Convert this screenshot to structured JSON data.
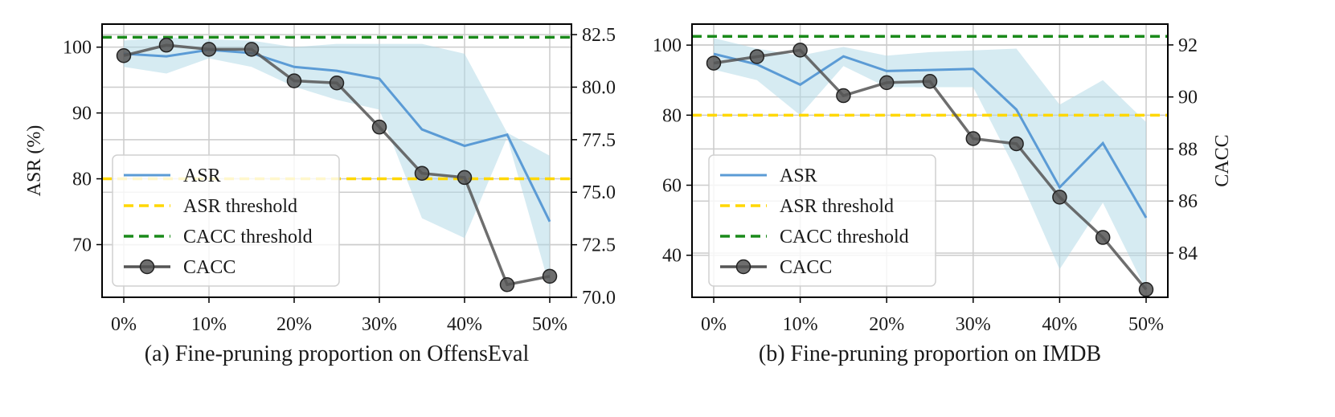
{
  "chart_data": [
    {
      "type": "line",
      "caption": "(a) Fine-pruning proportion on OffensEval",
      "x": [
        "0%",
        "5%",
        "10%",
        "15%",
        "20%",
        "25%",
        "30%",
        "35%",
        "40%",
        "45%",
        "50%"
      ],
      "xticks": [
        "0%",
        "10%",
        "20%",
        "30%",
        "40%",
        "50%"
      ],
      "ylabel": "ASR (%)",
      "y2label": "",
      "ylim": [
        62,
        103.5
      ],
      "yticks": [
        "70",
        "80",
        "90",
        "100"
      ],
      "y2lim": [
        70.0,
        83.0
      ],
      "y2ticks": [
        "70.0",
        "72.5",
        "75.0",
        "77.5",
        "80.0",
        "82.5"
      ],
      "series": [
        {
          "name": "ASR",
          "axis": "left",
          "color": "#5b9bd5",
          "values": [
            99.0,
            98.6,
            99.6,
            99.1,
            97.0,
            96.4,
            95.2,
            87.5,
            85.0,
            86.7,
            73.5
          ],
          "band_upper": [
            101.0,
            101.5,
            101.2,
            101.0,
            100.0,
            100.5,
            100.5,
            100.5,
            99.0,
            87.0,
            83.5
          ],
          "band_lower": [
            97.0,
            96.0,
            98.3,
            97.0,
            94.0,
            92.0,
            90.5,
            74.0,
            71.0,
            86.3,
            63.5
          ],
          "band_color": "#add8e6"
        },
        {
          "name": "CACC",
          "axis": "right",
          "color": "#555555",
          "marker": "circle",
          "values": [
            81.5,
            82.0,
            81.8,
            81.8,
            80.3,
            80.2,
            78.1,
            75.9,
            75.7,
            70.6,
            71.0
          ]
        }
      ],
      "thresholds": [
        {
          "name": "ASR threshold",
          "axis": "left",
          "value": 80,
          "color": "#ffd700"
        },
        {
          "name": "CACC threshold",
          "axis": "left",
          "value": 101.5,
          "color": "#1a8a1a"
        }
      ],
      "legend": [
        "ASR",
        "ASR threshold",
        "CACC threshold",
        "CACC"
      ],
      "legend_position": "lower-left",
      "grid": true
    },
    {
      "type": "line",
      "caption": "(b) Fine-pruning proportion on IMDB",
      "x": [
        "0%",
        "5%",
        "10%",
        "15%",
        "20%",
        "25%",
        "30%",
        "35%",
        "40%",
        "45%",
        "50%"
      ],
      "xticks": [
        "0%",
        "10%",
        "20%",
        "30%",
        "40%",
        "50%"
      ],
      "ylabel": "",
      "y2label": "CACC",
      "ylim": [
        28,
        106
      ],
      "yticks": [
        "40",
        "60",
        "80",
        "100"
      ],
      "y2lim": [
        82.3,
        92.8
      ],
      "y2ticks": [
        "84",
        "86",
        "88",
        "90",
        "92"
      ],
      "series": [
        {
          "name": "ASR",
          "axis": "left",
          "color": "#5b9bd5",
          "values": [
            97.5,
            94.5,
            88.7,
            96.8,
            92.6,
            92.9,
            93.2,
            81.6,
            59.4,
            72.0,
            50.7
          ],
          "band_upper": [
            102.0,
            99.0,
            97.0,
            99.5,
            97.0,
            98.0,
            98.5,
            99.0,
            83.0,
            90.0,
            78.0
          ],
          "band_lower": [
            93.0,
            90.0,
            80.0,
            94.0,
            88.0,
            88.0,
            88.0,
            64.0,
            36.0,
            55.0,
            30.0
          ],
          "band_color": "#add8e6"
        },
        {
          "name": "CACC",
          "axis": "right",
          "color": "#555555",
          "marker": "circle",
          "values": [
            91.3,
            91.55,
            91.8,
            90.05,
            90.55,
            90.6,
            88.4,
            88.2,
            86.15,
            84.6,
            82.6
          ]
        }
      ],
      "thresholds": [
        {
          "name": "ASR threshold",
          "axis": "left",
          "value": 80,
          "color": "#ffd700"
        },
        {
          "name": "CACC threshold",
          "axis": "left",
          "value": 102.5,
          "color": "#1a8a1a"
        }
      ],
      "legend": [
        "ASR",
        "ASR threshold",
        "CACC threshold",
        "CACC"
      ],
      "legend_position": "lower-left",
      "grid": true
    }
  ]
}
